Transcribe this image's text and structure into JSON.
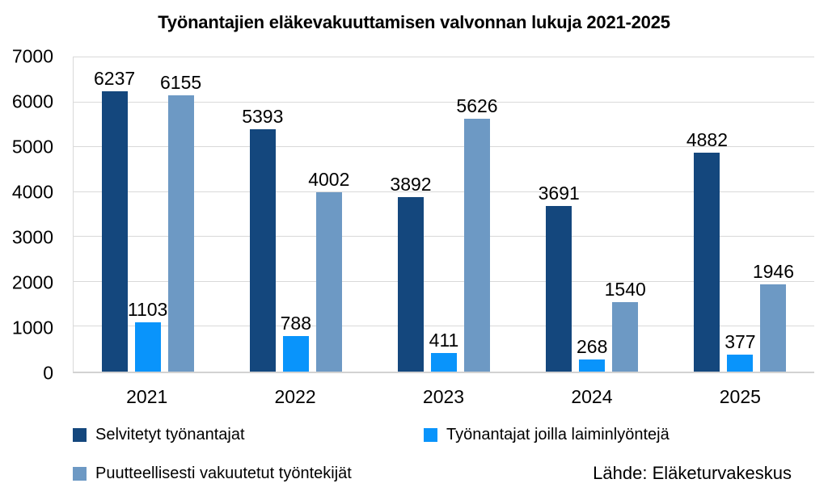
{
  "chart_data": {
    "type": "bar",
    "title": "Työnantajien eläkevakuuttamisen valvonnan lukuja 2021-2025",
    "categories": [
      "2021",
      "2022",
      "2023",
      "2024",
      "2025"
    ],
    "series": [
      {
        "name": "Selvitetyt työnantajat",
        "color": "#14477D",
        "values": [
          6237,
          5393,
          3892,
          3691,
          4882
        ]
      },
      {
        "name": "Työnantajat joilla laiminlyöntejä",
        "color": "#0994FB",
        "values": [
          1103,
          788,
          411,
          268,
          377
        ]
      },
      {
        "name": "Puutteellisesti vakuutetut työntekijät",
        "color": "#6D99C4",
        "values": [
          6155,
          4002,
          5626,
          1540,
          1946
        ]
      }
    ],
    "xlabel": "",
    "ylabel": "",
    "ylim": [
      0,
      7000
    ],
    "yticks": [
      0,
      1000,
      2000,
      3000,
      4000,
      5000,
      6000,
      7000
    ],
    "grid": "horizontal",
    "data_labels": true,
    "legend_position": "bottom"
  },
  "source_note": "Lähde: Eläketurvakeskus",
  "colors": {
    "gridline": "#d9d9d9",
    "axis_line": "#d2d2d2",
    "text": "#000000",
    "background": "#ffffff"
  }
}
